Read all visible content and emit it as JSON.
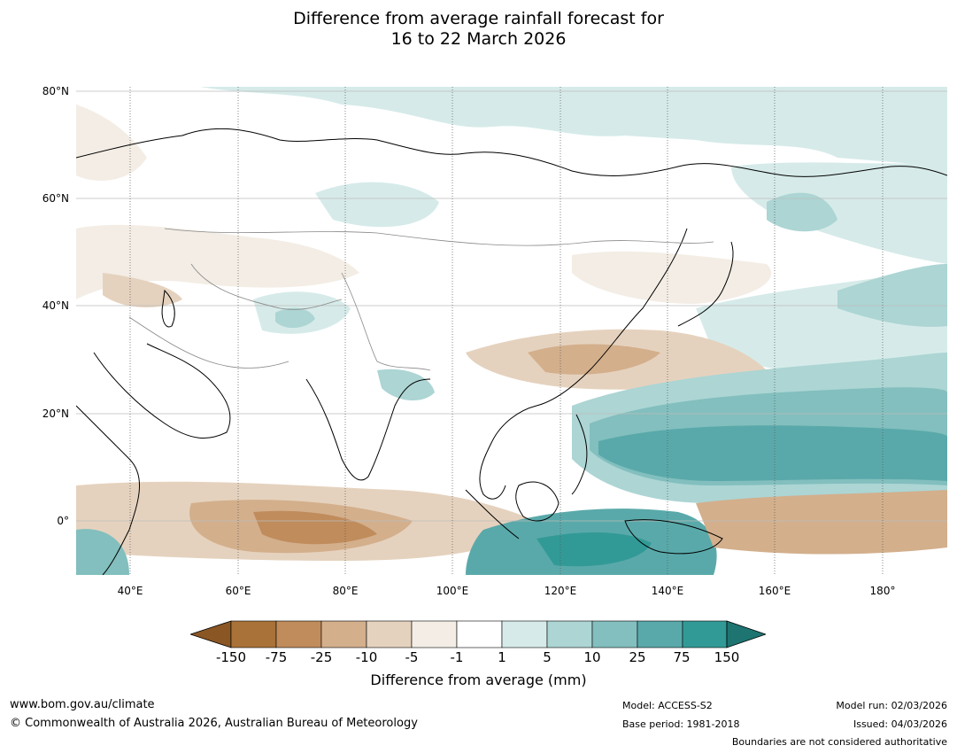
{
  "title": {
    "line1": "Difference from average rainfall forecast for",
    "line2": "16 to 22 March 2026"
  },
  "map": {
    "lat_labels": [
      "80°N",
      "60°N",
      "40°N",
      "20°N",
      "0°"
    ],
    "lon_labels": [
      "40°E",
      "60°E",
      "80°E",
      "100°E",
      "120°E",
      "140°E",
      "160°E",
      "180°"
    ],
    "colors": {
      "very_dry": "#a46a2f",
      "dry_75": "#c08c5c",
      "dry_25": "#d3af8c",
      "dry_10": "#e5d2be",
      "dry_5": "#f3ede5",
      "neutral": "#ffffff",
      "wet_1": "#d6ebe9",
      "wet_5": "#acd5d4",
      "wet_10": "#82bfbe",
      "wet_25": "#5aa9aa",
      "wet_75": "#329a96",
      "very_wet": "#1d7471",
      "coast": "#000000",
      "border": "#888888"
    }
  },
  "legend": {
    "ticks": [
      "-150",
      "-75",
      "-25",
      "-10",
      "-5",
      "-1",
      "1",
      "5",
      "10",
      "25",
      "75",
      "150"
    ],
    "label": "Difference from average (mm)"
  },
  "footer": {
    "website": "www.bom.gov.au/climate",
    "copyright": "© Commonwealth of Australia 2026, Australian Bureau of Meteorology",
    "model": "Model: ACCESS-S2",
    "base_period": "Base period: 1981-2018",
    "model_run": "Model run: 02/03/2026",
    "issued": "Issued: 04/03/2026",
    "disclaimer": "Boundaries are not considered authoritative"
  }
}
